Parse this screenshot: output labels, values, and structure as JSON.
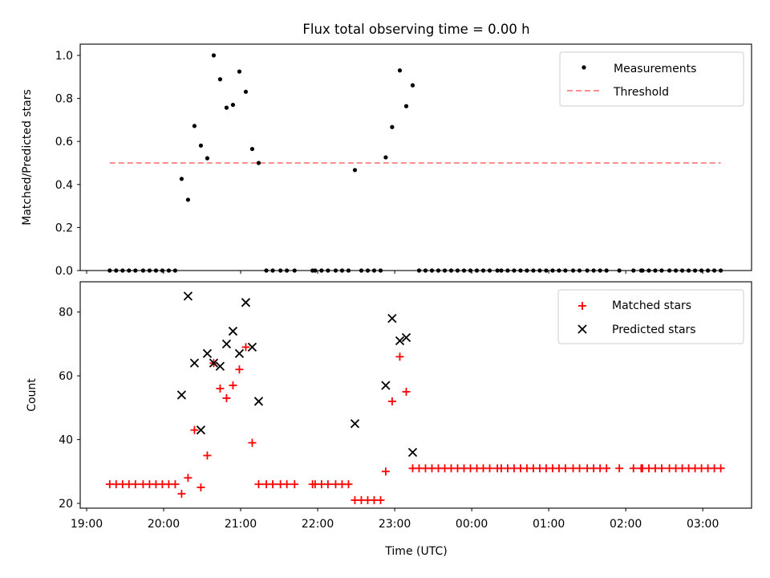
{
  "figure": {
    "title": "Flux total observing time = 0.00 h"
  },
  "chart_data": [
    {
      "type": "scatter",
      "panel": "top",
      "title": "Flux total observing time = 0.00 h",
      "xlabel": "",
      "ylabel": "Matched/Predicted stars",
      "x_unit": "minutes since 19:00 UTC",
      "ylim": [
        0.0,
        1.05
      ],
      "yticks": [
        0.0,
        0.2,
        0.4,
        0.6,
        0.8,
        1.0
      ],
      "ytick_labels": [
        "0.0",
        "0.2",
        "0.4",
        "0.6",
        "0.8",
        "1.0"
      ],
      "grid": false,
      "legend": {
        "placement": "top-right",
        "entries": [
          "Measurements",
          "Threshold"
        ]
      },
      "series": [
        {
          "name": "Measurements",
          "marker": "dot",
          "color": "#000000",
          "points": [
            [
              18,
              0
            ],
            [
              23,
              0
            ],
            [
              28,
              0
            ],
            [
              33,
              0
            ],
            [
              38,
              0
            ],
            [
              44,
              0
            ],
            [
              49,
              0
            ],
            [
              54,
              0
            ],
            [
              59,
              0
            ],
            [
              64,
              0
            ],
            [
              69,
              0
            ],
            [
              74,
              0.426
            ],
            [
              79,
              0.329
            ],
            [
              84,
              0.672
            ],
            [
              89,
              0.581
            ],
            [
              94,
              0.522
            ],
            [
              99,
              1.0
            ],
            [
              104,
              0.889
            ],
            [
              109,
              0.757
            ],
            [
              114,
              0.77
            ],
            [
              119,
              0.925
            ],
            [
              124,
              0.831
            ],
            [
              129,
              0.565
            ],
            [
              134,
              0.5
            ],
            [
              140,
              0
            ],
            [
              145,
              0
            ],
            [
              151,
              0
            ],
            [
              156,
              0
            ],
            [
              162,
              0
            ],
            [
              176,
              0
            ],
            [
              178,
              0
            ],
            [
              183,
              0
            ],
            [
              188,
              0
            ],
            [
              194,
              0
            ],
            [
              199,
              0
            ],
            [
              204,
              0
            ],
            [
              209,
              0.467
            ],
            [
              214,
              0
            ],
            [
              219,
              0
            ],
            [
              224,
              0
            ],
            [
              229,
              0
            ],
            [
              233,
              0.526
            ],
            [
              238,
              0.667
            ],
            [
              244,
              0.93
            ],
            [
              249,
              0.764
            ],
            [
              254,
              0.861
            ],
            [
              259,
              0
            ],
            [
              264,
              0
            ],
            [
              269,
              0
            ],
            [
              274,
              0
            ],
            [
              279,
              0
            ],
            [
              284,
              0
            ],
            [
              289,
              0
            ],
            [
              294,
              0
            ],
            [
              299,
              0
            ],
            [
              304,
              0
            ],
            [
              309,
              0
            ],
            [
              314,
              0
            ],
            [
              320,
              0
            ],
            [
              323,
              0
            ],
            [
              328,
              0
            ],
            [
              333,
              0
            ],
            [
              338,
              0
            ],
            [
              343,
              0
            ],
            [
              348,
              0
            ],
            [
              353,
              0
            ],
            [
              358,
              0
            ],
            [
              363,
              0
            ],
            [
              368,
              0
            ],
            [
              373,
              0
            ],
            [
              379,
              0
            ],
            [
              384,
              0
            ],
            [
              390,
              0
            ],
            [
              395,
              0
            ],
            [
              400,
              0
            ],
            [
              405,
              0
            ],
            [
              415,
              0
            ],
            [
              426,
              0
            ],
            [
              432,
              0
            ],
            [
              433,
              0
            ],
            [
              438,
              0
            ],
            [
              443,
              0
            ],
            [
              448,
              0
            ],
            [
              454,
              0
            ],
            [
              459,
              0
            ],
            [
              464,
              0
            ],
            [
              469,
              0
            ],
            [
              474,
              0
            ],
            [
              479,
              0
            ],
            [
              484,
              0
            ],
            [
              489,
              0
            ],
            [
              494,
              0
            ]
          ]
        },
        {
          "name": "Threshold",
          "style": "dashed",
          "color": "#ff7f7f",
          "x_range": [
            18,
            494
          ],
          "value": 0.5
        }
      ]
    },
    {
      "type": "scatter",
      "panel": "bottom",
      "xlabel": "Time (UTC)",
      "ylabel": "Count",
      "x_unit": "minutes since 19:00 UTC",
      "xlim": [
        -5,
        518
      ],
      "xticks": [
        0,
        60,
        120,
        180,
        240,
        300,
        360,
        420,
        480
      ],
      "xtick_labels": [
        "19:00",
        "20:00",
        "21:00",
        "22:00",
        "23:00",
        "00:00",
        "01:00",
        "02:00",
        "03:00"
      ],
      "ylim": [
        18.5,
        89.5
      ],
      "yticks": [
        20,
        40,
        60,
        80
      ],
      "ytick_labels": [
        "20",
        "40",
        "60",
        "80"
      ],
      "grid": false,
      "legend": {
        "placement": "top-right",
        "entries": [
          "Matched stars",
          "Predicted stars"
        ]
      },
      "series": [
        {
          "name": "Matched stars",
          "marker": "plus",
          "color": "#ff0000",
          "points": [
            [
              18,
              26
            ],
            [
              23,
              26
            ],
            [
              28,
              26
            ],
            [
              33,
              26
            ],
            [
              38,
              26
            ],
            [
              44,
              26
            ],
            [
              49,
              26
            ],
            [
              54,
              26
            ],
            [
              59,
              26
            ],
            [
              64,
              26
            ],
            [
              69,
              26
            ],
            [
              74,
              23
            ],
            [
              79,
              28
            ],
            [
              84,
              43
            ],
            [
              89,
              25
            ],
            [
              94,
              35
            ],
            [
              99,
              64
            ],
            [
              104,
              56
            ],
            [
              109,
              53
            ],
            [
              114,
              57
            ],
            [
              119,
              62
            ],
            [
              124,
              69
            ],
            [
              129,
              39
            ],
            [
              134,
              26
            ],
            [
              140,
              26
            ],
            [
              145,
              26
            ],
            [
              151,
              26
            ],
            [
              156,
              26
            ],
            [
              162,
              26
            ],
            [
              176,
              26
            ],
            [
              178,
              26
            ],
            [
              183,
              26
            ],
            [
              188,
              26
            ],
            [
              194,
              26
            ],
            [
              199,
              26
            ],
            [
              204,
              26
            ],
            [
              209,
              21
            ],
            [
              214,
              21
            ],
            [
              219,
              21
            ],
            [
              224,
              21
            ],
            [
              229,
              21
            ],
            [
              233,
              30
            ],
            [
              238,
              52
            ],
            [
              244,
              66
            ],
            [
              249,
              55
            ],
            [
              254,
              31
            ],
            [
              259,
              31
            ],
            [
              264,
              31
            ],
            [
              269,
              31
            ],
            [
              274,
              31
            ],
            [
              279,
              31
            ],
            [
              284,
              31
            ],
            [
              289,
              31
            ],
            [
              294,
              31
            ],
            [
              299,
              31
            ],
            [
              304,
              31
            ],
            [
              309,
              31
            ],
            [
              314,
              31
            ],
            [
              320,
              31
            ],
            [
              323,
              31
            ],
            [
              328,
              31
            ],
            [
              333,
              31
            ],
            [
              338,
              31
            ],
            [
              343,
              31
            ],
            [
              348,
              31
            ],
            [
              353,
              31
            ],
            [
              358,
              31
            ],
            [
              363,
              31
            ],
            [
              368,
              31
            ],
            [
              373,
              31
            ],
            [
              379,
              31
            ],
            [
              384,
              31
            ],
            [
              390,
              31
            ],
            [
              395,
              31
            ],
            [
              400,
              31
            ],
            [
              405,
              31
            ],
            [
              415,
              31
            ],
            [
              426,
              31
            ],
            [
              432,
              31
            ],
            [
              433,
              31
            ],
            [
              438,
              31
            ],
            [
              443,
              31
            ],
            [
              448,
              31
            ],
            [
              454,
              31
            ],
            [
              459,
              31
            ],
            [
              464,
              31
            ],
            [
              469,
              31
            ],
            [
              474,
              31
            ],
            [
              479,
              31
            ],
            [
              484,
              31
            ],
            [
              489,
              31
            ],
            [
              494,
              31
            ]
          ]
        },
        {
          "name": "Predicted stars",
          "marker": "x",
          "color": "#000000",
          "points": [
            [
              74,
              54
            ],
            [
              79,
              85
            ],
            [
              84,
              64
            ],
            [
              89,
              43
            ],
            [
              94,
              67
            ],
            [
              99,
              64
            ],
            [
              104,
              63
            ],
            [
              109,
              70
            ],
            [
              114,
              74
            ],
            [
              119,
              67
            ],
            [
              124,
              83
            ],
            [
              129,
              69
            ],
            [
              134,
              52
            ],
            [
              209,
              45
            ],
            [
              233,
              57
            ],
            [
              238,
              78
            ],
            [
              244,
              71
            ],
            [
              249,
              72
            ],
            [
              254,
              36
            ]
          ]
        }
      ]
    }
  ]
}
